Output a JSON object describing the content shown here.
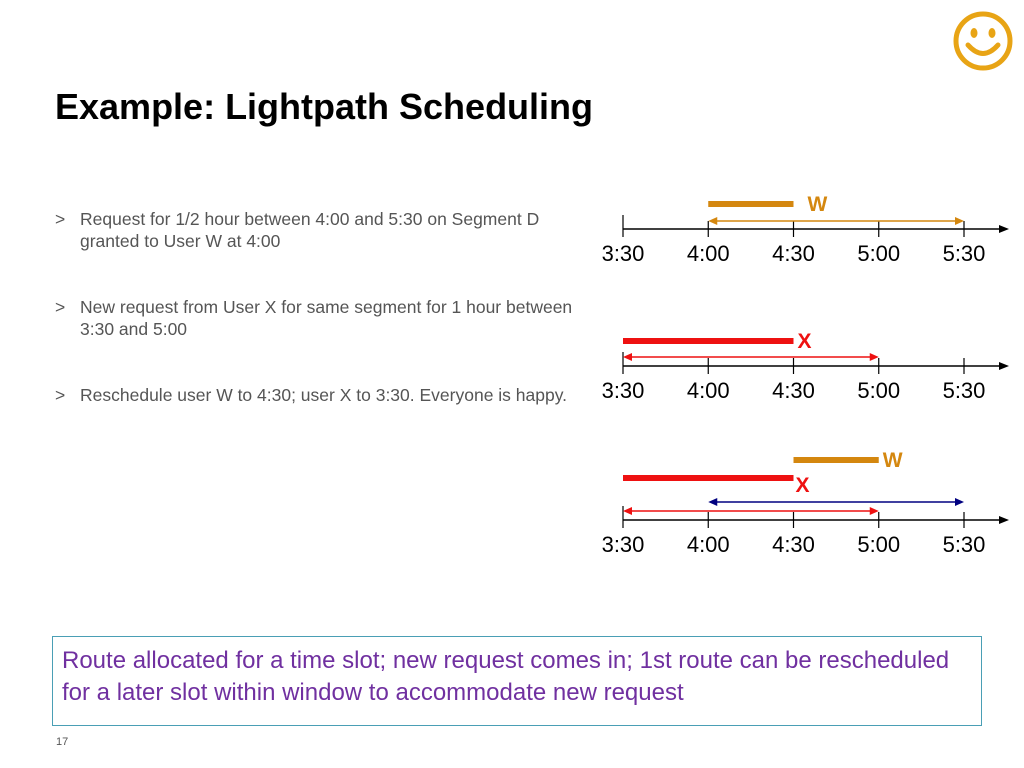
{
  "title": "Example: Lightpath Scheduling",
  "bullets": [
    {
      "marker": ">",
      "text": "Request for 1/2 hour between 4:00 and 5:30 on Segment D granted to User W at 4:00"
    },
    {
      "marker": ">",
      "text": "New request from User X for same segment for 1 hour between 3:30 and 5:00"
    },
    {
      "marker": ">",
      "text": "Reschedule user W to 4:30; user X to 3:30. Everyone is happy."
    }
  ],
  "timelines": [
    {
      "ticks": [
        "3:30",
        "4:00",
        "4:30",
        "5:00",
        "5:30"
      ],
      "users": [
        {
          "label": "W",
          "bar_start": "4:00",
          "bar_end": "4:30",
          "window_start": "4:00",
          "window_end": "5:30",
          "color": "#d4870f"
        }
      ]
    },
    {
      "ticks": [
        "3:30",
        "4:00",
        "4:30",
        "5:00",
        "5:30"
      ],
      "users": [
        {
          "label": "X",
          "bar_start": "3:30",
          "bar_end": "4:30",
          "window_start": "3:30",
          "window_end": "5:00",
          "color": "#ee1111"
        }
      ]
    },
    {
      "ticks": [
        "3:30",
        "4:00",
        "4:30",
        "5:00",
        "5:30"
      ],
      "users": [
        {
          "label": "W",
          "bar_start": "4:30",
          "bar_end": "5:00",
          "window_start": "4:00",
          "window_end": "5:30",
          "color": "#d4870f",
          "window_color": "#000080"
        },
        {
          "label": "X",
          "bar_start": "3:30",
          "bar_end": "4:30",
          "window_start": "3:30",
          "window_end": "5:00",
          "color": "#ee1111"
        }
      ]
    }
  ],
  "callout": "Route allocated for a time slot; new request comes in; 1st route can be rescheduled for a later slot within window to accommodate new request",
  "page_number": "17",
  "colors": {
    "accent": "#e8a415",
    "callout_text": "#7030a0",
    "callout_border": "#4a9fb5"
  },
  "icons": {
    "top_right": "smiley-icon"
  }
}
